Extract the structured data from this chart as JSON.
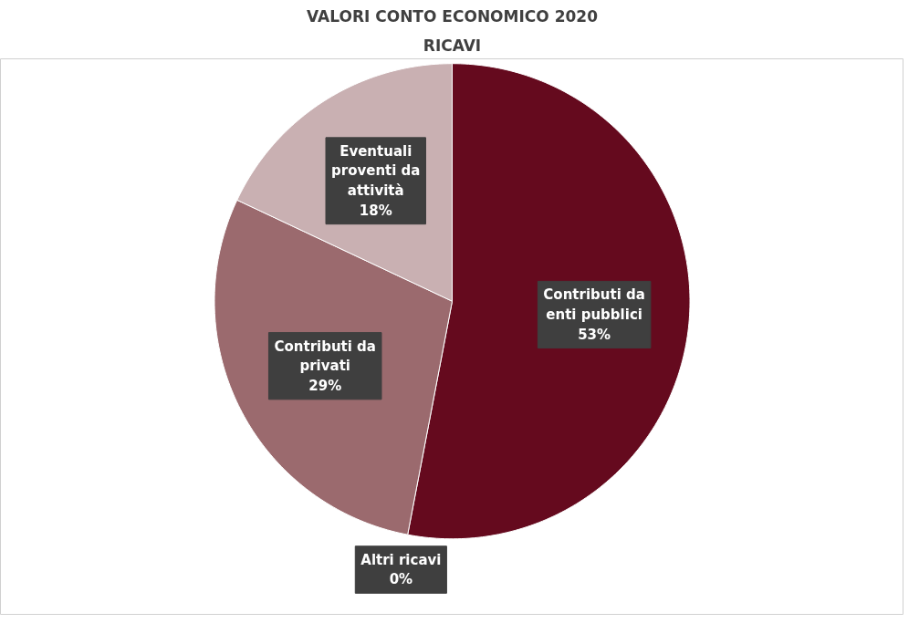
{
  "chart_data": {
    "type": "pie",
    "title": "VALORI CONTO ECONOMICO 2020",
    "subtitle": "RICAVI",
    "categories": [
      "Contributi da enti pubblici",
      "Altri ricavi",
      "Contributi da privati",
      "Eventuali proventi da attività"
    ],
    "values": [
      53,
      0,
      29,
      18
    ],
    "value_labels": [
      "53%",
      "0%",
      "29%",
      "18%"
    ],
    "colors": [
      "#650a1e",
      "#7d3a45",
      "#9b6a6e",
      "#c9b0b2"
    ]
  }
}
